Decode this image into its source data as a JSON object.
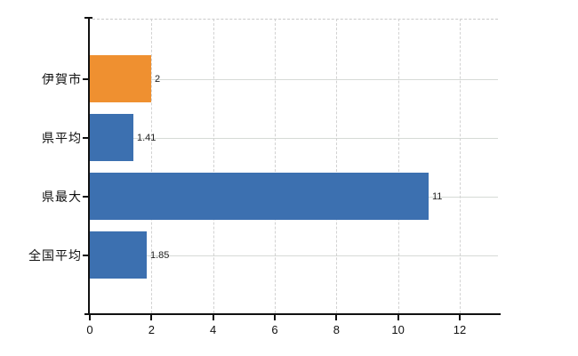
{
  "chart_data": {
    "type": "bar",
    "orientation": "horizontal",
    "title": "",
    "xlabel": "",
    "ylabel": "",
    "categories": [
      "伊賀市",
      "県平均",
      "県最大",
      "全国平均"
    ],
    "values": [
      2,
      1.41,
      11,
      1.85
    ],
    "value_labels": [
      "2",
      "1.41",
      "11",
      "1.85"
    ],
    "x_ticks": [
      0,
      2,
      4,
      6,
      8,
      10,
      12
    ],
    "x_tick_labels": [
      "0",
      "2",
      "4",
      "6",
      "8",
      "10",
      "12"
    ],
    "xlim": [
      0,
      13.24
    ],
    "grid": true,
    "legend": false,
    "bar_colors": [
      "#EF9030",
      "#3C70B0",
      "#3C70B0",
      "#3C70B0"
    ],
    "colors": {
      "bar_orange": "#EF9030",
      "bar_blue": "#3C70B0",
      "gridline": "#d6dad6",
      "axis": "#111111",
      "text": "#111111"
    }
  }
}
